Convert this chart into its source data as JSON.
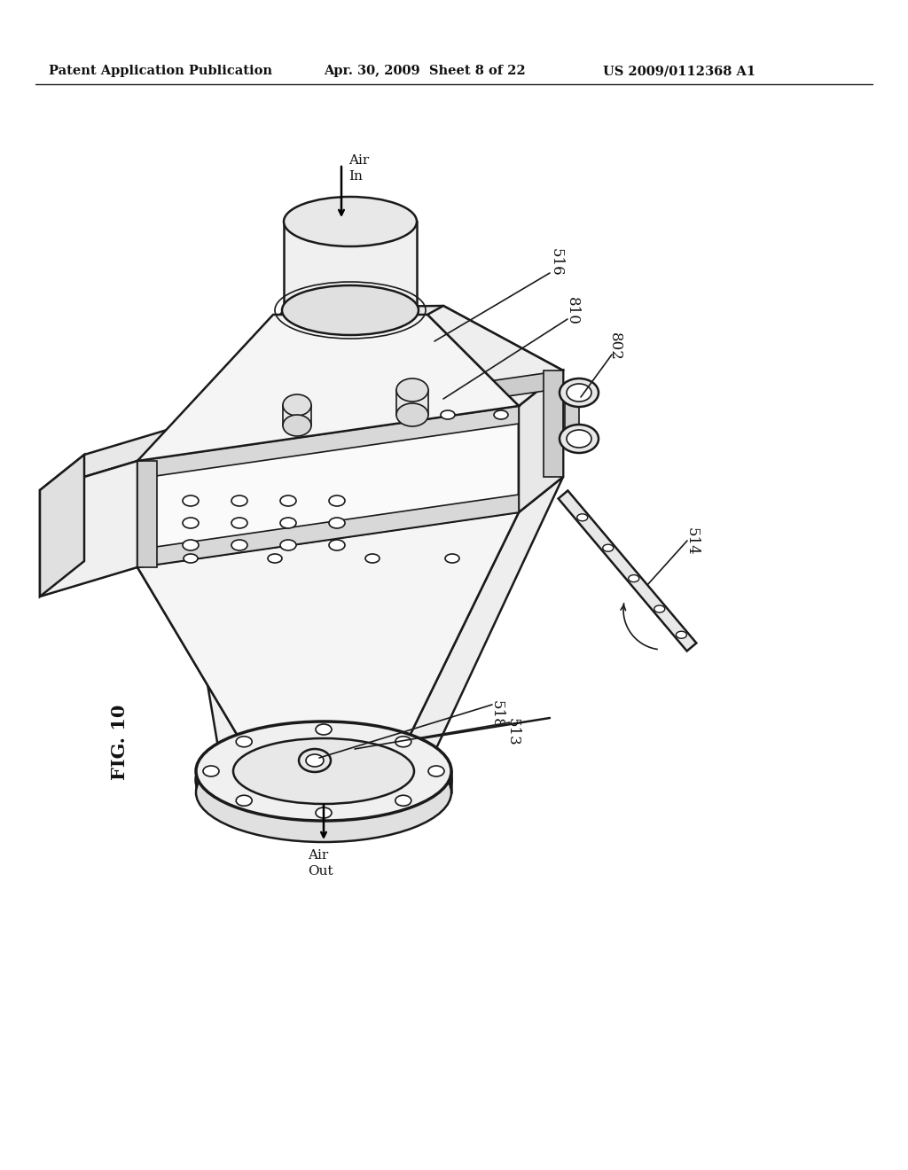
{
  "background_color": "#ffffff",
  "header_left": "Patent Application Publication",
  "header_center": "Apr. 30, 2009  Sheet 8 of 22",
  "header_right": "US 2009/0112368 A1",
  "figure_label": "FIG. 10",
  "line_color": "#1a1a1a",
  "fill_light": "#f0f0f0",
  "fill_mid": "#e0e0e0",
  "fill_dark": "#c8c8c8"
}
